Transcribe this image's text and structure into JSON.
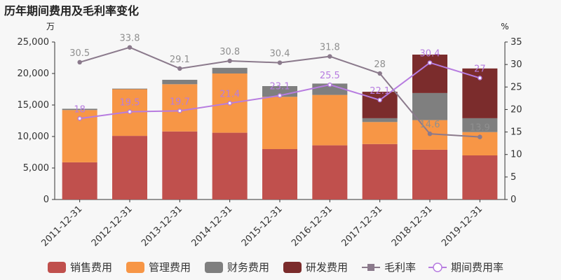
{
  "chart_data": {
    "type": "bar",
    "title": "历年期间费用及毛利率变化",
    "left_unit": "万",
    "right_unit": "%",
    "categories": [
      "2011-12-31",
      "2012-12-31",
      "2013-12-31",
      "2014-12-31",
      "2015-12-31",
      "2016-12-31",
      "2017-12-31",
      "2018-12-31",
      "2019-12-31"
    ],
    "ylim_left": [
      0,
      25000
    ],
    "yticks_left": [
      "0",
      "5,000",
      "10,000",
      "15,000",
      "20,000",
      "25,000"
    ],
    "ylim_right": [
      0,
      35
    ],
    "yticks_right": [
      "0",
      "5",
      "10",
      "15",
      "20",
      "25",
      "30",
      "35"
    ],
    "bar_series": [
      {
        "name": "销售费用",
        "color": "#c0504d",
        "values": [
          5900,
          10100,
          10800,
          10600,
          8000,
          8600,
          8800,
          7900,
          7000
        ]
      },
      {
        "name": "管理费用",
        "color": "#f79646",
        "values": [
          8300,
          7400,
          7500,
          9400,
          8300,
          8000,
          3500,
          4700,
          3700
        ]
      },
      {
        "name": "财务费用",
        "color": "#7f7f7f",
        "values": [
          200,
          100,
          700,
          900,
          1700,
          1800,
          600,
          4300,
          2200
        ]
      },
      {
        "name": "研发费用",
        "color": "#7b2c2c",
        "values": [
          0,
          0,
          0,
          0,
          0,
          0,
          4200,
          6100,
          7900
        ]
      }
    ],
    "line_series": [
      {
        "name": "毛利率",
        "color": "#8b7a8c",
        "values": [
          30.5,
          33.8,
          29.1,
          30.8,
          30.4,
          31.8,
          28,
          14.6,
          13.9
        ],
        "labels": [
          "30.5",
          "33.8",
          "29.1",
          "30.8",
          "30.4",
          "31.8",
          "28",
          "14.6",
          "13.9"
        ]
      },
      {
        "name": "期间费用率",
        "color": "#b77ce0",
        "values": [
          18,
          19.5,
          19.7,
          21.4,
          23.1,
          25.5,
          22.1,
          30.4,
          27
        ],
        "labels": [
          "18",
          "19.5",
          "19.7",
          "21.4",
          "23.1",
          "25.5",
          "22.1",
          "30.4",
          "27"
        ]
      }
    ]
  }
}
